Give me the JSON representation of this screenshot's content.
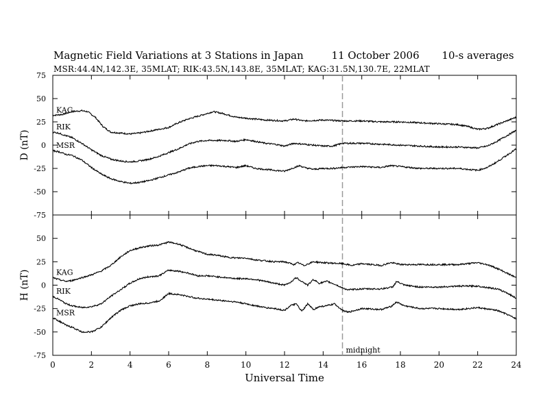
{
  "chart_data": {
    "type": "line",
    "title": "Magnetic Field Variations at 3 Stations in Japan",
    "date": "11 October 2006",
    "averaging": "10-s averages",
    "subtitle": "MSR:44.4N,142.3E, 35MLAT;   RIK:43.5N,143.8E, 35MLAT;   KAG:31.5N,130.7E, 22MLAT",
    "xlabel": "Universal Time",
    "xlim": [
      0,
      24
    ],
    "xticks": [
      0,
      2,
      4,
      6,
      8,
      10,
      12,
      14,
      16,
      18,
      20,
      22,
      24
    ],
    "annotation": {
      "label": "midnight",
      "x": 15
    },
    "panels": [
      {
        "ylabel": "D (nT)",
        "ylim": [
          -75,
          75
        ],
        "yticks": [
          75,
          50,
          25,
          0,
          -25,
          -50,
          -75
        ],
        "series": [
          {
            "name": "KAG",
            "x": [
              0,
              0.5,
              1,
              1.5,
              1.8,
              2.2,
              2.6,
              3,
              3.5,
              4,
              4.5,
              5,
              5.5,
              6,
              6.5,
              7,
              7.5,
              8,
              8.3,
              8.8,
              9.5,
              10,
              11,
              12,
              12.5,
              13,
              14,
              15,
              16,
              17,
              18,
              19,
              20,
              21,
              21.5,
              22,
              22.5,
              23,
              23.5,
              24
            ],
            "y": [
              32,
              33,
              36,
              37,
              36,
              30,
              20,
              14,
              13,
              12,
              13,
              15,
              17,
              19,
              24,
              28,
              31,
              34,
              36,
              34,
              30,
              29,
              27,
              26,
              28,
              26,
              27,
              26,
              26,
              25,
              25,
              24,
              23,
              22,
              20,
              17,
              18,
              22,
              26,
              30
            ]
          },
          {
            "name": "RIK",
            "x": [
              0,
              0.3,
              0.7,
              1,
              1.5,
              2,
              2.5,
              3,
              3.5,
              4,
              4.5,
              5,
              5.5,
              6,
              6.5,
              7,
              7.5,
              8,
              8.5,
              9,
              9.5,
              10,
              10.5,
              11,
              11.5,
              12,
              12.5,
              13,
              13.5,
              14,
              14.5,
              15,
              16,
              17,
              18,
              19,
              20,
              21,
              22,
              22.5,
              23,
              23.5,
              24
            ],
            "y": [
              14,
              13,
              10,
              8,
              2,
              -5,
              -11,
              -15,
              -17,
              -18,
              -17,
              -15,
              -12,
              -8,
              -4,
              1,
              4,
              5,
              5,
              5,
              4,
              6,
              4,
              2,
              1,
              -1,
              2,
              1,
              0,
              -1,
              -1,
              2,
              2,
              1,
              0,
              -1,
              -2,
              -2,
              -3,
              -1,
              4,
              10,
              16
            ]
          },
          {
            "name": "MSR",
            "x": [
              0,
              0.3,
              0.7,
              1,
              1.5,
              2,
              2.5,
              3,
              3.5,
              4,
              4.5,
              5,
              5.5,
              6,
              6.5,
              7,
              7.5,
              8,
              8.5,
              9,
              9.5,
              10,
              10.5,
              11,
              11.5,
              12,
              12.5,
              12.8,
              13,
              13.5,
              14,
              14.5,
              15,
              16,
              17,
              17.5,
              18,
              19,
              20,
              21,
              22,
              22.5,
              23,
              23.5,
              24
            ],
            "y": [
              -6,
              -7,
              -10,
              -11,
              -16,
              -24,
              -31,
              -36,
              -39,
              -41,
              -40,
              -38,
              -35,
              -32,
              -29,
              -25,
              -23,
              -22,
              -22,
              -23,
              -24,
              -22,
              -25,
              -26,
              -27,
              -28,
              -24,
              -22,
              -24,
              -26,
              -25,
              -25,
              -24,
              -23,
              -24,
              -22,
              -23,
              -25,
              -25,
              -25,
              -27,
              -24,
              -18,
              -11,
              -4
            ]
          }
        ]
      },
      {
        "ylabel": "H (nT)",
        "ylim": [
          -75,
          75
        ],
        "yticks": [
          50,
          25,
          0,
          -25,
          -50,
          -75
        ],
        "series": [
          {
            "name": "KAG",
            "x": [
              0,
              0.3,
              0.7,
              1,
              1.5,
              2,
              2.5,
              3,
              3.5,
              4,
              4.5,
              5,
              5.5,
              6,
              6.5,
              7,
              7.5,
              8,
              8.5,
              9,
              9.5,
              10,
              10.5,
              11,
              11.5,
              12,
              12.5,
              12.7,
              13,
              13.5,
              14,
              15,
              15.5,
              16,
              17,
              17.5,
              17.8,
              18,
              19,
              20,
              21,
              21.5,
              22,
              22.5,
              23,
              23.5,
              24
            ],
            "y": [
              8,
              6,
              4,
              5,
              8,
              11,
              15,
              21,
              30,
              37,
              40,
              42,
              43,
              46,
              44,
              40,
              36,
              33,
              32,
              30,
              29,
              29,
              27,
              26,
              25,
              25,
              22,
              24,
              21,
              25,
              24,
              23,
              21,
              23,
              21,
              24,
              23,
              22,
              22,
              22,
              22,
              23,
              24,
              22,
              18,
              13,
              8
            ]
          },
          {
            "name": "RIK",
            "x": [
              0,
              0.3,
              0.7,
              1,
              1.5,
              2,
              2.5,
              3,
              3.5,
              4,
              4.5,
              5,
              5.5,
              6,
              6.5,
              7,
              7.5,
              8,
              8.5,
              9,
              9.5,
              10,
              10.5,
              11,
              11.5,
              12,
              12.3,
              12.6,
              12.9,
              13.2,
              13.5,
              13.8,
              14.2,
              14.6,
              15,
              15.3,
              16,
              17,
              17.6,
              17.8,
              18.2,
              19,
              20,
              21,
              22,
              23,
              23.5,
              24
            ],
            "y": [
              -12,
              -15,
              -20,
              -22,
              -24,
              -23,
              -20,
              -12,
              -5,
              2,
              7,
              9,
              10,
              16,
              15,
              13,
              10,
              10,
              9,
              8,
              7,
              7,
              6,
              4,
              2,
              0,
              3,
              8,
              4,
              0,
              6,
              2,
              4,
              1,
              -3,
              -5,
              -4,
              -4,
              -2,
              4,
              0,
              -2,
              -2,
              -1,
              -1,
              -4,
              -8,
              -14
            ]
          },
          {
            "name": "MSR",
            "x": [
              0,
              0.3,
              0.7,
              1,
              1.5,
              2,
              2.5,
              3,
              3.5,
              4,
              4.5,
              5,
              5.5,
              6,
              6.5,
              7,
              7.5,
              8,
              8.5,
              9,
              9.5,
              10,
              10.5,
              11,
              11.5,
              12,
              12.3,
              12.6,
              12.9,
              13.2,
              13.5,
              13.8,
              14.2,
              14.6,
              15,
              15.3,
              16,
              17,
              17.5,
              17.8,
              18.2,
              19,
              20,
              21,
              22,
              23,
              23.5,
              24
            ],
            "y": [
              -35,
              -38,
              -43,
              -45,
              -50,
              -50,
              -45,
              -35,
              -27,
              -22,
              -20,
              -19,
              -17,
              -9,
              -10,
              -12,
              -14,
              -15,
              -16,
              -17,
              -18,
              -20,
              -22,
              -24,
              -25,
              -27,
              -22,
              -20,
              -28,
              -20,
              -26,
              -23,
              -22,
              -20,
              -27,
              -29,
              -25,
              -26,
              -23,
              -18,
              -22,
              -25,
              -25,
              -26,
              -24,
              -27,
              -31,
              -36
            ]
          }
        ]
      }
    ]
  }
}
